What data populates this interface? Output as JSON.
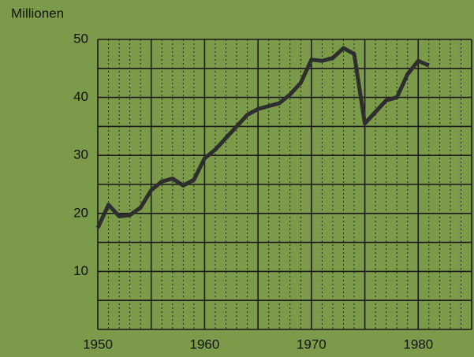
{
  "chart_data": {
    "type": "line",
    "title": "Millionen",
    "x": [
      1950,
      1951,
      1952,
      1953,
      1954,
      1955,
      1956,
      1957,
      1958,
      1959,
      1960,
      1961,
      1962,
      1963,
      1964,
      1965,
      1966,
      1967,
      1968,
      1969,
      1970,
      1971,
      1972,
      1973,
      1974,
      1975,
      1976,
      1977,
      1978,
      1979,
      1980,
      1981
    ],
    "values": [
      17.5,
      21.5,
      19.5,
      19.7,
      21,
      24,
      25.5,
      26,
      24.8,
      25.8,
      29.5,
      31,
      33,
      35,
      37,
      38,
      38.5,
      39,
      40.5,
      42.5,
      46.5,
      46.3,
      46.8,
      48.5,
      47.5,
      35.5,
      37.5,
      39.5,
      40,
      44,
      46.3,
      45.5
    ],
    "color": "#2e2e2e",
    "xlim": [
      1950,
      1985
    ],
    "xticks": [
      1950,
      1960,
      1970,
      1980
    ],
    "ylim": [
      0,
      50
    ],
    "yticks": [
      10,
      20,
      30,
      40,
      50
    ],
    "xgrid": [
      1950,
      1955,
      1960,
      1965,
      1970,
      1975,
      1980,
      1985
    ],
    "ygrid": [
      0,
      5,
      10,
      15,
      20,
      25,
      30,
      35,
      40,
      45,
      50
    ],
    "x_minor_step": 1,
    "grid": true
  }
}
